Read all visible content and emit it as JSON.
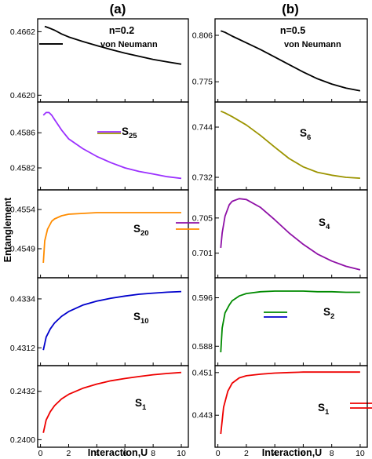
{
  "figure": {
    "ylabel": "Entanglement",
    "xlabel": "Interaction,U",
    "columns": [
      {
        "title": "(a)",
        "note": "n=0.2"
      },
      {
        "title": "(b)",
        "note": "n=0.5"
      }
    ]
  },
  "chart_data": [
    {
      "type": "line",
      "column": 0,
      "row": 0,
      "series": [
        {
          "name": "von Neumann",
          "color": "#000000",
          "legend": {
            "main": "von Neumann",
            "sub": ""
          },
          "x": [
            0.3,
            0.6,
            1,
            1.5,
            2,
            3,
            4,
            5,
            6,
            7,
            8,
            9,
            10
          ],
          "y": [
            0.46655,
            0.46645,
            0.4663,
            0.46605,
            0.46585,
            0.46555,
            0.46528,
            0.46502,
            0.46478,
            0.46457,
            0.46437,
            0.4642,
            0.46405
          ]
        }
      ],
      "yticks": [
        0.462,
        0.4662
      ],
      "yticklabels": [
        "0.4620",
        "0.4662"
      ],
      "ylim": [
        0.46155,
        0.46705
      ],
      "xlim": [
        -0.2,
        10.5
      ]
    },
    {
      "type": "line",
      "column": 0,
      "row": 1,
      "series": [
        {
          "name": "S25",
          "color": "#9b30ff",
          "legend": {
            "main": "S",
            "sub": "25"
          },
          "x": [
            0.2,
            0.4,
            0.6,
            0.8,
            1,
            1.5,
            2,
            3,
            4,
            5,
            6,
            7,
            8,
            9,
            10
          ],
          "y": [
            0.4588,
            0.45883,
            0.45883,
            0.4588,
            0.45875,
            0.45863,
            0.45853,
            0.45842,
            0.45833,
            0.45826,
            0.4582,
            0.45816,
            0.45813,
            0.4581,
            0.45808
          ]
        }
      ],
      "yticks": [
        0.4582,
        0.4586
      ],
      "yticklabels": [
        "0.4582",
        "0.4586"
      ],
      "ylim": [
        0.45795,
        0.45895
      ],
      "xlim": [
        -0.2,
        10.5
      ]
    },
    {
      "type": "line",
      "column": 0,
      "row": 2,
      "series": [
        {
          "name": "S20",
          "color": "#ff8c00",
          "legend": {
            "main": "S",
            "sub": "20"
          },
          "x": [
            0.2,
            0.3,
            0.5,
            0.8,
            1,
            1.5,
            2,
            3,
            4,
            5,
            6,
            7,
            8,
            9,
            10
          ],
          "y": [
            0.45472,
            0.455,
            0.45515,
            0.45525,
            0.45528,
            0.45532,
            0.45534,
            0.45535,
            0.45536,
            0.45536,
            0.45536,
            0.45536,
            0.45536,
            0.45536,
            0.45536
          ]
        }
      ],
      "yticks": [
        0.4549,
        0.4554
      ],
      "yticklabels": [
        "0.4549",
        "0.4554"
      ],
      "ylim": [
        0.45453,
        0.45565
      ],
      "xlim": [
        -0.2,
        10.5
      ]
    },
    {
      "type": "line",
      "column": 0,
      "row": 3,
      "series": [
        {
          "name": "S10",
          "color": "#0000cc",
          "legend": {
            "main": "S",
            "sub": "10"
          },
          "x": [
            0.2,
            0.4,
            0.7,
            1,
            1.5,
            2,
            3,
            4,
            5,
            6,
            7,
            8,
            9,
            10
          ],
          "y": [
            0.4311,
            0.43168,
            0.43205,
            0.43232,
            0.43262,
            0.43283,
            0.43312,
            0.4333,
            0.43343,
            0.43353,
            0.43361,
            0.43366,
            0.4337,
            0.43373
          ]
        }
      ],
      "yticks": [
        0.4312,
        0.4334
      ],
      "yticklabels": [
        "0.4312",
        "0.4334"
      ],
      "ylim": [
        0.4304,
        0.43435
      ],
      "xlim": [
        -0.2,
        10.5
      ]
    },
    {
      "type": "line",
      "column": 0,
      "row": 4,
      "series": [
        {
          "name": "S1",
          "color": "#ee0000",
          "legend": {
            "main": "S",
            "sub": "1"
          },
          "x": [
            0.2,
            0.4,
            0.7,
            1,
            1.5,
            2,
            3,
            4,
            5,
            6,
            7,
            8,
            9,
            10
          ],
          "y": [
            0.24045,
            0.2413,
            0.24185,
            0.24225,
            0.2427,
            0.243,
            0.2434,
            0.24368,
            0.2439,
            0.24405,
            0.24418,
            0.2443,
            0.24438,
            0.24445
          ]
        }
      ],
      "yticks": [
        0.24,
        0.2432
      ],
      "yticklabels": [
        "0.2400",
        "0.2432"
      ],
      "ylim": [
        0.2395,
        0.2449
      ],
      "xlim": [
        -0.2,
        10.5
      ]
    },
    {
      "type": "line",
      "column": 1,
      "row": 0,
      "series": [
        {
          "name": "von Neumann",
          "color": "#000000",
          "legend": {
            "main": "von Neumann",
            "sub": ""
          },
          "x": [
            0.2,
            0.5,
            1,
            2,
            3,
            4,
            5,
            6,
            7,
            8,
            9,
            10
          ],
          "y": [
            0.809,
            0.808,
            0.8055,
            0.801,
            0.7965,
            0.7915,
            0.7865,
            0.7815,
            0.777,
            0.7735,
            0.7708,
            0.769
          ]
        }
      ],
      "yticks": [
        0.775,
        0.806
      ],
      "yticklabels": [
        "0.775",
        "0.806"
      ],
      "ylim": [
        0.7615,
        0.817
      ],
      "xlim": [
        -0.2,
        10.5
      ]
    },
    {
      "type": "line",
      "column": 1,
      "row": 1,
      "series": [
        {
          "name": "S6",
          "color": "#9c9400",
          "legend": {
            "main": "S",
            "sub": "6"
          },
          "x": [
            0.2,
            0.5,
            1,
            2,
            3,
            4,
            5,
            6,
            7,
            8,
            9,
            10
          ],
          "y": [
            0.7478,
            0.7474,
            0.7465,
            0.7445,
            0.742,
            0.7392,
            0.7365,
            0.7345,
            0.7332,
            0.7325,
            0.732,
            0.7318
          ]
        }
      ],
      "yticks": [
        0.732,
        0.744
      ],
      "yticklabels": [
        "0.732",
        "0.744"
      ],
      "ylim": [
        0.729,
        0.75
      ],
      "xlim": [
        -0.2,
        10.5
      ]
    },
    {
      "type": "line",
      "column": 1,
      "row": 2,
      "series": [
        {
          "name": "S4",
          "color": "#8e10a6",
          "legend": {
            "main": "S",
            "sub": "4"
          },
          "x": [
            0.2,
            0.3,
            0.5,
            0.8,
            1,
            1.5,
            2,
            3,
            4,
            5,
            6,
            7,
            8,
            9,
            10
          ],
          "y": [
            0.7016,
            0.7033,
            0.7052,
            0.7065,
            0.7069,
            0.7072,
            0.7071,
            0.7062,
            0.7048,
            0.7033,
            0.702,
            0.7009,
            0.7001,
            0.6995,
            0.6991
          ]
        }
      ],
      "yticks": [
        0.701,
        0.705
      ],
      "yticklabels": [
        "0.701",
        "0.705"
      ],
      "ylim": [
        0.6982,
        0.7082
      ],
      "xlim": [
        -0.2,
        10.5
      ]
    },
    {
      "type": "line",
      "column": 1,
      "row": 3,
      "series": [
        {
          "name": "S2",
          "color": "#008a00",
          "legend": {
            "main": "S",
            "sub": "2"
          },
          "x": [
            0.2,
            0.3,
            0.5,
            0.8,
            1,
            1.5,
            2,
            3,
            4,
            5,
            6,
            7,
            8,
            9,
            10
          ],
          "y": [
            0.587,
            0.591,
            0.5935,
            0.5948,
            0.5955,
            0.5963,
            0.5967,
            0.597,
            0.5971,
            0.5971,
            0.5971,
            0.597,
            0.597,
            0.5969,
            0.5969
          ]
        }
      ],
      "yticks": [
        0.588,
        0.596
      ],
      "yticklabels": [
        "0.588",
        "0.596"
      ],
      "ylim": [
        0.5848,
        0.5993
      ],
      "xlim": [
        -0.2,
        10.5
      ]
    },
    {
      "type": "line",
      "column": 1,
      "row": 4,
      "series": [
        {
          "name": "S1",
          "color": "#ee0000",
          "legend": {
            "main": "S",
            "sub": "1"
          },
          "x": [
            0.2,
            0.4,
            0.7,
            1,
            1.5,
            2,
            3,
            4,
            5,
            6,
            7,
            8,
            9,
            10
          ],
          "y": [
            0.4395,
            0.4445,
            0.4475,
            0.449,
            0.45,
            0.4504,
            0.4507,
            0.4509,
            0.451,
            0.4511,
            0.4511,
            0.4511,
            0.4511,
            0.4511
          ]
        }
      ],
      "yticks": [
        0.443,
        0.451
      ],
      "yticklabels": [
        "0.443",
        "0.451"
      ],
      "ylim": [
        0.437,
        0.4523
      ],
      "xlim": [
        -0.2,
        10.5
      ]
    }
  ],
  "xaxis": {
    "ticks": [
      0,
      2,
      4,
      6,
      8,
      10
    ],
    "ticklabels": [
      "0",
      "2",
      "4",
      "6",
      "8",
      "10"
    ]
  }
}
